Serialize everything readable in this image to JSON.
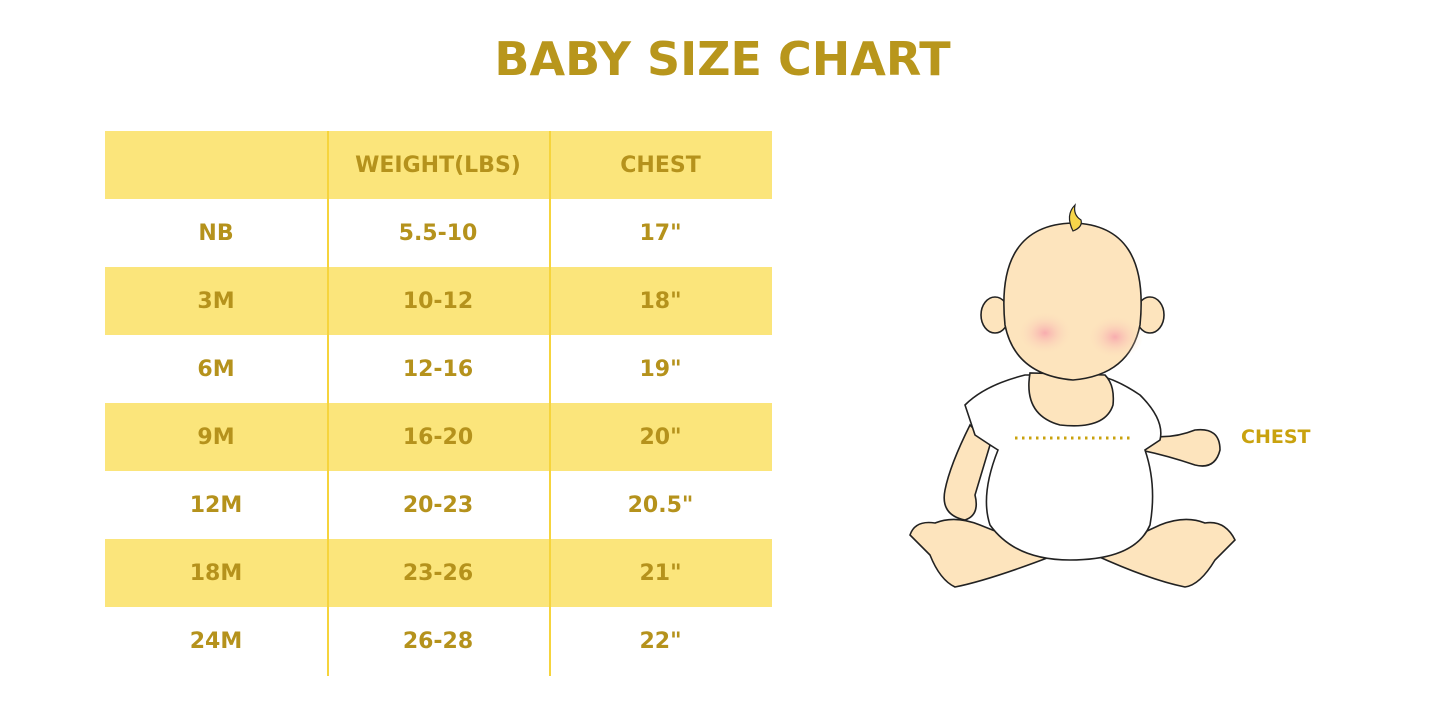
{
  "title": "BABY SIZE CHART",
  "table": {
    "headers": [
      "",
      "WEIGHT(LBS)",
      "CHEST"
    ],
    "rows": [
      [
        "NB",
        "5.5-10",
        "17\""
      ],
      [
        "3M",
        "10-12",
        "18\""
      ],
      [
        "6M",
        "12-16",
        "19\""
      ],
      [
        "9M",
        "16-20",
        "20\""
      ],
      [
        "12M",
        "20-23",
        "20.5\""
      ],
      [
        "18M",
        "23-26",
        "21\""
      ],
      [
        "24M",
        "26-28",
        "22\""
      ]
    ]
  },
  "illustration": {
    "chest_label": "CHEST"
  },
  "colors": {
    "text": "#b5921c",
    "row_shade": "#fbe57b",
    "divider": "#f6d43c",
    "skin": "#fde4bd"
  }
}
